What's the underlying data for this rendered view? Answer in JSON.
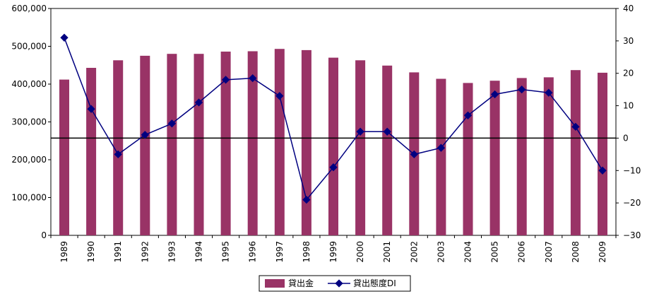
{
  "chart_data": {
    "type": "bar",
    "categories": [
      "1989",
      "1990",
      "1991",
      "1992",
      "1993",
      "1994",
      "1995",
      "1996",
      "1997",
      "1998",
      "1999",
      "2000",
      "2001",
      "2002",
      "2003",
      "2004",
      "2005",
      "2006",
      "2007",
      "2008",
      "2009"
    ],
    "series": [
      {
        "name": "貸出金",
        "type": "bar",
        "axis": "left",
        "color": "#993366",
        "values": [
          412000,
          443000,
          463000,
          475000,
          480000,
          480000,
          486000,
          487000,
          493000,
          490000,
          470000,
          463000,
          449000,
          431000,
          414000,
          403000,
          409000,
          416000,
          418000,
          437000,
          430000
        ]
      },
      {
        "name": "貸出態度DI",
        "type": "line",
        "axis": "right",
        "color": "#000080",
        "values": [
          31,
          9,
          -5,
          1,
          4.5,
          11,
          18,
          18.5,
          13,
          -19,
          -9,
          2,
          2,
          -5,
          -3,
          7,
          13.5,
          15,
          14,
          3.5,
          -10
        ]
      }
    ],
    "y_left": {
      "min": 0,
      "max": 600000,
      "step": 100000,
      "tick_labels": [
        "0",
        "100,000",
        "200,000",
        "300,000",
        "400,000",
        "500,000",
        "600,000"
      ]
    },
    "y_right": {
      "min": -30,
      "max": 40,
      "step": 10,
      "tick_labels": [
        "−30",
        "−20",
        "−10",
        "0",
        "10",
        "20",
        "30",
        "40"
      ]
    },
    "zero_line_right": 0,
    "grid": false,
    "legend_position": "bottom"
  }
}
